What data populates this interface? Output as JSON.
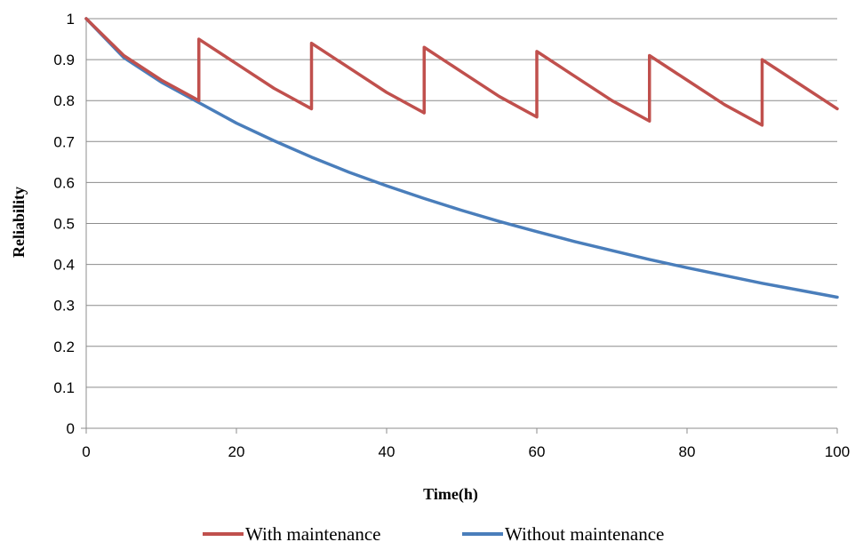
{
  "chart_data": {
    "type": "line",
    "title": "",
    "xlabel": "Time(h)",
    "ylabel": "Reliability",
    "xlim": [
      0,
      100
    ],
    "ylim": [
      0,
      1
    ],
    "x_ticks": [
      "0",
      "20",
      "40",
      "60",
      "80",
      "100"
    ],
    "y_ticks": [
      "0",
      "0.1",
      "0.2",
      "0.3",
      "0.4",
      "0.5",
      "0.6",
      "0.7",
      "0.8",
      "0.9",
      "1"
    ],
    "grid": "horizontal",
    "legend_position": "bottom",
    "series": [
      {
        "name": "With maintenance",
        "color": "#c0504d",
        "points": [
          [
            0,
            1.0
          ],
          [
            5,
            0.91
          ],
          [
            10,
            0.85
          ],
          [
            15,
            0.8
          ],
          [
            15,
            0.95
          ],
          [
            20,
            0.89
          ],
          [
            25,
            0.83
          ],
          [
            30,
            0.78
          ],
          [
            30,
            0.94
          ],
          [
            35,
            0.88
          ],
          [
            40,
            0.82
          ],
          [
            45,
            0.77
          ],
          [
            45,
            0.93
          ],
          [
            50,
            0.87
          ],
          [
            55,
            0.81
          ],
          [
            60,
            0.76
          ],
          [
            60,
            0.92
          ],
          [
            65,
            0.86
          ],
          [
            70,
            0.8
          ],
          [
            75,
            0.75
          ],
          [
            75,
            0.91
          ],
          [
            80,
            0.85
          ],
          [
            85,
            0.79
          ],
          [
            90,
            0.74
          ],
          [
            90,
            0.9
          ],
          [
            95,
            0.84
          ],
          [
            100,
            0.78
          ]
        ]
      },
      {
        "name": "Without maintenance",
        "color": "#4a7ebb",
        "points": [
          [
            0,
            1.0
          ],
          [
            5,
            0.905
          ],
          [
            10,
            0.845
          ],
          [
            15,
            0.795
          ],
          [
            20,
            0.745
          ],
          [
            25,
            0.702
          ],
          [
            30,
            0.662
          ],
          [
            35,
            0.625
          ],
          [
            40,
            0.592
          ],
          [
            45,
            0.561
          ],
          [
            50,
            0.532
          ],
          [
            55,
            0.505
          ],
          [
            60,
            0.48
          ],
          [
            65,
            0.456
          ],
          [
            70,
            0.434
          ],
          [
            75,
            0.412
          ],
          [
            80,
            0.392
          ],
          [
            85,
            0.373
          ],
          [
            90,
            0.354
          ],
          [
            95,
            0.337
          ],
          [
            100,
            0.32
          ]
        ]
      }
    ]
  }
}
